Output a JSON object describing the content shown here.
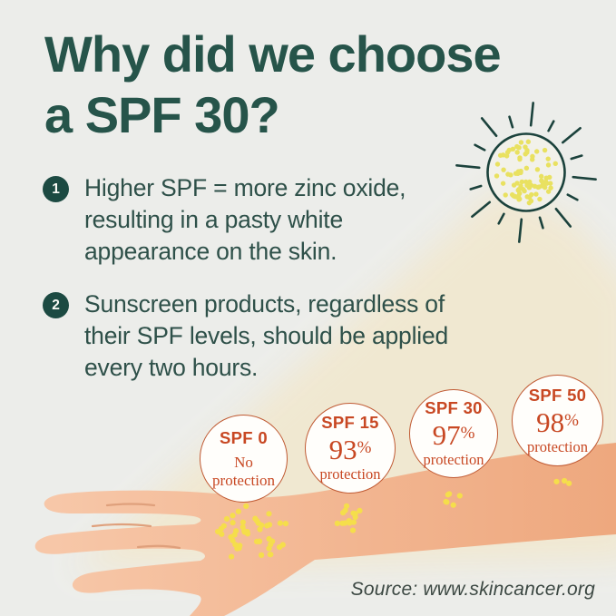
{
  "title": {
    "line1": "Why did we choose",
    "line2": "a SPF 30?"
  },
  "points": [
    {
      "number": "1",
      "text": "Higher SPF = more zinc oxide, resulting in a pasty white appearance on the skin."
    },
    {
      "number": "2",
      "text": "Sunscreen products, regardless of their SPF levels, should be applied every two hours."
    }
  ],
  "spf_badges": [
    {
      "label": "SPF 0",
      "percent_num": "",
      "percent_sign": "",
      "caption": "No protection"
    },
    {
      "label": "SPF 15",
      "percent_num": "93",
      "percent_sign": "%",
      "caption": "protection"
    },
    {
      "label": "SPF 30",
      "percent_num": "97",
      "percent_sign": "%",
      "caption": "protection"
    },
    {
      "label": "SPF 50",
      "percent_num": "98",
      "percent_sign": "%",
      "caption": "protection"
    }
  ],
  "source": "Source: www.skincancer.org",
  "icons": {
    "sun": "sun-icon",
    "arm": "arm-illustration"
  },
  "colors": {
    "background": "#ECEDEA",
    "title_teal": "#26544A",
    "body_teal": "#2E5049",
    "badge_teal": "#1C4A42",
    "accent_orange": "#C84823",
    "circle_border": "#C05A33",
    "beam_cream": "#F1E8D0",
    "skin_light": "#F7C7A8",
    "skin_deep": "#EEA87E",
    "zinc_dot_yellow": "#F5DE4B",
    "sun_dot_yellow": "#E9E160",
    "sun_outline": "#1B423C"
  }
}
